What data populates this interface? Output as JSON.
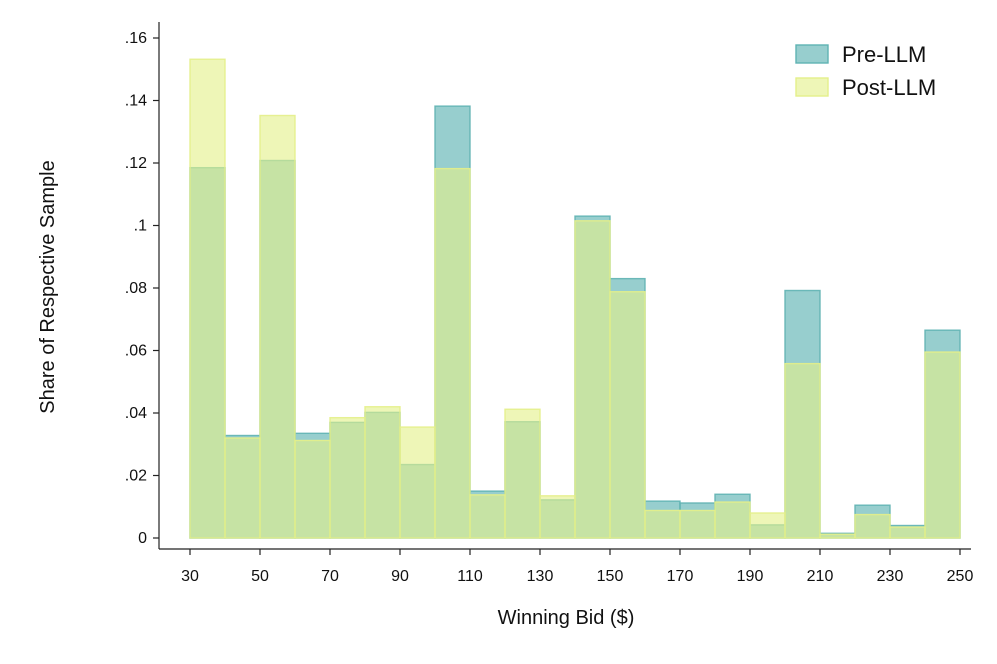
{
  "chart_data": {
    "type": "bar",
    "subtype": "overlaid-histogram",
    "title": "",
    "xlabel": "Winning Bid ($)",
    "ylabel": "Share of Respective Sample",
    "bin_width": 10,
    "bins": [
      30,
      40,
      50,
      60,
      70,
      80,
      90,
      100,
      110,
      120,
      130,
      140,
      150,
      160,
      170,
      180,
      190,
      200,
      210,
      220,
      230,
      240
    ],
    "xlim": [
      30,
      250
    ],
    "ylim": [
      0,
      0.16
    ],
    "x_ticks": [
      30,
      50,
      70,
      90,
      110,
      130,
      150,
      170,
      190,
      210,
      230,
      250
    ],
    "x_tick_labels": [
      "30",
      "50",
      "70",
      "90",
      "110",
      "130",
      "150",
      "170",
      "190",
      "210",
      "230",
      "250"
    ],
    "y_ticks": [
      0,
      0.02,
      0.04,
      0.06,
      0.08,
      0.1,
      0.12,
      0.14,
      0.16
    ],
    "y_tick_labels": [
      "0",
      ".02",
      ".04",
      ".06",
      ".08",
      ".1",
      ".12",
      ".14",
      ".16"
    ],
    "grid": false,
    "legend_position": "top-right",
    "series": [
      {
        "name": "Pre-LLM",
        "color": "#5fb3b3",
        "values": [
          0.1185,
          0.0328,
          0.1208,
          0.0335,
          0.037,
          0.0402,
          0.0235,
          0.1382,
          0.015,
          0.0372,
          0.0122,
          0.103,
          0.083,
          0.0118,
          0.0112,
          0.014,
          0.0042,
          0.0792,
          0.0015,
          0.0105,
          0.004,
          0.0665
        ]
      },
      {
        "name": "Post-LLM",
        "color": "#e4f08a",
        "values": [
          0.1532,
          0.032,
          0.1352,
          0.0312,
          0.0385,
          0.042,
          0.0355,
          0.1182,
          0.0138,
          0.0412,
          0.0135,
          0.1015,
          0.0788,
          0.0088,
          0.0088,
          0.0115,
          0.008,
          0.0558,
          0.0012,
          0.0075,
          0.0035,
          0.0595
        ]
      }
    ]
  }
}
